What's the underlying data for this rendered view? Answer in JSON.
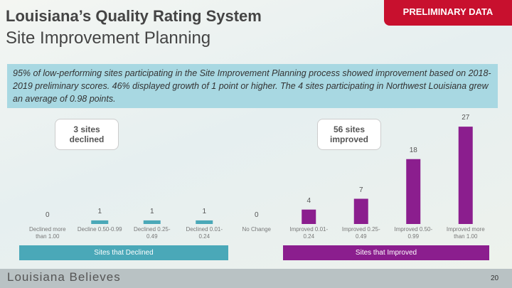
{
  "header": {
    "title": "Louisiana’s Quality Rating System",
    "subtitle": "Site Improvement Planning",
    "badge": "PRELIMINARY DATA"
  },
  "summary": "95% of low-performing sites participating in the Site Improvement Planning process showed improvement based on 2018-2019 preliminary scores. 46% displayed growth of 1 point or higher. The 4 sites participating in Northwest Louisiana grew an average of 0.98 points.",
  "callouts": [
    "3 sites declined",
    "56 sites improved"
  ],
  "groups": [
    "Sites that Declined",
    "Sites that Improved"
  ],
  "footer": {
    "brand": "Louisiana Believes",
    "page": "20"
  },
  "chart_data": {
    "type": "bar",
    "categories": [
      "Declined more than 1.00",
      "Decline 0.50-0.99",
      "Declined 0.25-0.49",
      "Declined 0.01-0.24",
      "No Change",
      "Improved 0.01-0.24",
      "Improved 0.25-0.49",
      "Improved 0.50-0.99",
      "Improved more than 1.00"
    ],
    "values": [
      0,
      1,
      1,
      1,
      0,
      4,
      7,
      18,
      27
    ],
    "colors": [
      "#4aa8b8",
      "#4aa8b8",
      "#4aa8b8",
      "#4aa8b8",
      "#4aa8b8",
      "#8b1e8e",
      "#8b1e8e",
      "#8b1e8e",
      "#8b1e8e"
    ]
  }
}
